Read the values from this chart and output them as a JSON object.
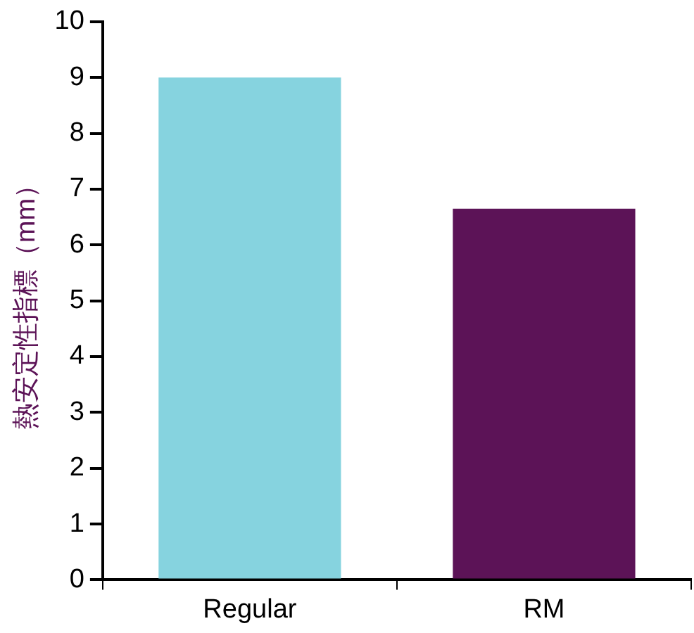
{
  "chart_data": {
    "type": "bar",
    "ylabel": "熱安定性指標（mm）",
    "categories": [
      "Regular",
      "RM"
    ],
    "values": [
      9.0,
      6.65
    ],
    "colors": [
      "#86d3df",
      "#5c1357"
    ],
    "ylim": [
      0,
      10
    ],
    "yticks": [
      0,
      1,
      2,
      3,
      4,
      5,
      6,
      7,
      8,
      9,
      10
    ],
    "grid": false,
    "legend": false
  }
}
